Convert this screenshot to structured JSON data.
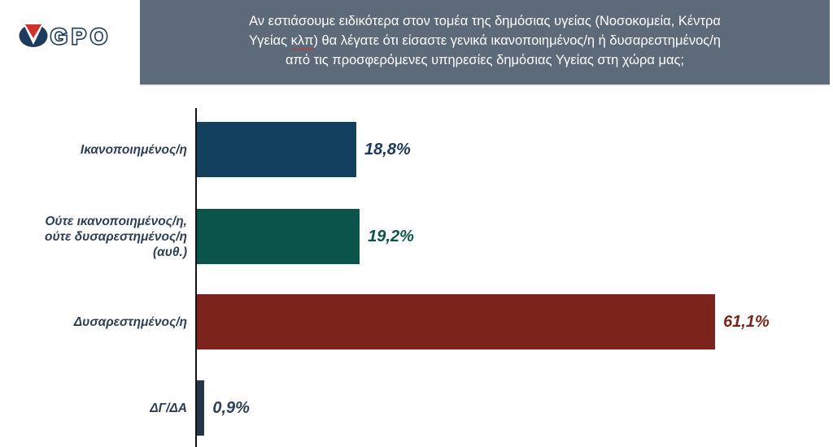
{
  "logo": {
    "text": "GPO",
    "navy": "#1d3b5e",
    "red": "#d0312d"
  },
  "header": {
    "bg_color": "#5d6a7a",
    "text_color": "#ffffff",
    "line1": "Αν εστιάσουμε ειδικότερα στον τομέα της δημόσιας υγείας (Νοσοκομεία, Κέντρα",
    "line2_pre": "Υγείας ",
    "line2_spellcheck_word": "κλπ",
    "line2_post": ") θα λέγατε ότι είσαστε γενικά ικανοποιημένος/η ή δυσαρεστημένος/η",
    "line3": "από τις προσφερόμενες υπηρεσίες δημόσιας Υγείας στη χώρα μας;"
  },
  "chart_data": {
    "type": "bar",
    "orientation": "horizontal",
    "title": "Αν εστιάσουμε ειδικότερα στον τομέα της δημόσιας υγείας (Νοσοκομεία, Κέντρα Υγείας κλπ) θα λέγατε ότι είσαστε γενικά ικανοποιημένος/η ή δυσαρεστημένος/η από τις προσφερόμενες υπηρεσίες δημόσιας Υγείας στη χώρα μας;",
    "categories": [
      "Ικανοποιημένος/η",
      "Ούτε ικανοποιημένος/η,\nούτε δυσαρεστημένος/η\n(αυθ.)",
      "Δυσαρεστημένος/η",
      "ΔΓ/ΔΑ"
    ],
    "values": [
      18.8,
      19.2,
      61.1,
      0.9
    ],
    "value_labels": [
      "18,8%",
      "19,2%",
      "61,1%",
      "0,9%"
    ],
    "bar_colors": [
      "#14405f",
      "#0b544c",
      "#7c241c",
      "#263649"
    ],
    "value_label_colors": [
      "#1b3a5c",
      "#0b544c",
      "#7c241c",
      "#2e4156"
    ],
    "axis_color": "#141414",
    "label_color": "#2e4057",
    "xlim": [
      0,
      75
    ],
    "grid": false,
    "legend": false,
    "xlabel": "",
    "ylabel": ""
  }
}
